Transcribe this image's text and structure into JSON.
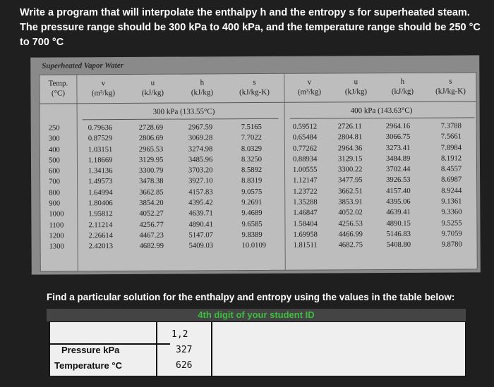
{
  "question": {
    "line1": "Write a program that will interpolate the enthalpy h and the entropy s for superheated steam.",
    "line2": "The pressure range should be 300 kPa to 400 kPa, and the temperature range should be 250 °C",
    "line3": "to 700 °C"
  },
  "steam_table": {
    "caption": "Superheated Vapor Water",
    "headers": {
      "temp": "Temp.",
      "temp_unit": "(°C)",
      "v": "v",
      "v_unit": "(m³/kg)",
      "u": "u",
      "u_unit": "(kJ/kg)",
      "h": "h",
      "h_unit": "(kJ/kg)",
      "s": "s",
      "s_unit": "(kJ/kg-K)"
    },
    "pressure_300": "300 kPa (133.55°C)",
    "pressure_400": "400 kPa (143.63°C)",
    "temps": [
      "250",
      "300",
      "400",
      "500",
      "600",
      "700",
      "800",
      "900",
      "1000",
      "1100",
      "1200",
      "1300"
    ],
    "p300": {
      "v": [
        "0.79636",
        "0.87529",
        "1.03151",
        "1.18669",
        "1.34136",
        "1.49573",
        "1.64994",
        "1.80406",
        "1.95812",
        "2.11214",
        "2.26614",
        "2.42013"
      ],
      "u": [
        "2728.69",
        "2806.69",
        "2965.53",
        "3129.95",
        "3300.79",
        "3478.38",
        "3662.85",
        "3854.20",
        "4052.27",
        "4256.77",
        "4467.23",
        "4682.99"
      ],
      "h": [
        "2967.59",
        "3069.28",
        "3274.98",
        "3485.96",
        "3703.20",
        "3927.10",
        "4157.83",
        "4395.42",
        "4639.71",
        "4890.41",
        "5147.07",
        "5409.03"
      ],
      "s": [
        "7.5165",
        "7.7022",
        "8.0329",
        "8.3250",
        "8.5892",
        "8.8319",
        "9.0575",
        "9.2691",
        "9.4689",
        "9.6585",
        "9.8389",
        "10.0109"
      ]
    },
    "p400": {
      "v": [
        "0.59512",
        "0.65484",
        "0.77262",
        "0.88934",
        "1.00555",
        "1.12147",
        "1.23722",
        "1.35288",
        "1.46847",
        "1.58404",
        "1.69958",
        "1.81511"
      ],
      "u": [
        "2726.11",
        "2804.81",
        "2964.36",
        "3129.15",
        "3300.22",
        "3477.95",
        "3662.51",
        "3853.91",
        "4052.02",
        "4256.53",
        "4466.99",
        "4682.75"
      ],
      "h": [
        "2964.16",
        "3066.75",
        "3273.41",
        "3484.89",
        "3702.44",
        "3926.53",
        "4157.40",
        "4395.06",
        "4639.41",
        "4890.15",
        "5146.83",
        "5408.80"
      ],
      "s": [
        "7.3788",
        "7.5661",
        "7.8984",
        "8.1912",
        "8.4557",
        "8.6987",
        "8.9244",
        "9.1361",
        "9.3360",
        "9.5255",
        "9.7059",
        "9.8780"
      ]
    }
  },
  "find": {
    "text": "Find a particular solution for the enthalpy and entropy using the values in the table below:",
    "header": "4th digit of your student ID",
    "col_value": "1,2",
    "pressure_label": "Pressure kPa",
    "pressure_value": "327",
    "temperature_label": "Temperature  °C",
    "temperature_value": "626"
  }
}
